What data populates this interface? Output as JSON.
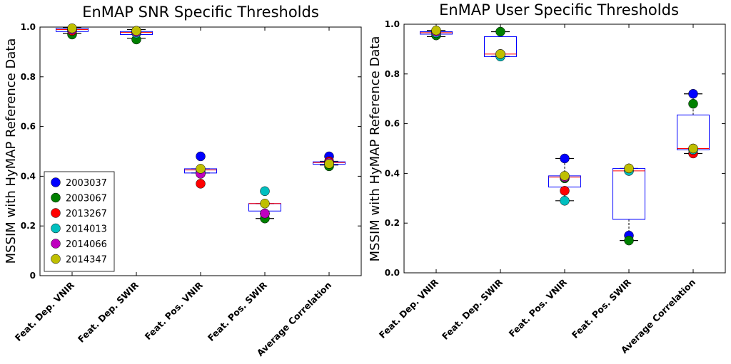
{
  "chart_data": [
    {
      "type": "box",
      "title": "EnMAP SNR Specific Thresholds",
      "ylabel": "MSSIM with HyMAP Reference Data",
      "xlabel": "",
      "ylim": [
        0,
        1
      ],
      "yticks": [
        "0",
        "0.2",
        "0.4",
        "0.6",
        "0.8",
        "1.0"
      ],
      "categories": [
        "Feat. Dep. VNIR",
        "Feat. Dep. SWIR",
        "Feat. Pos. VNIR",
        "Feat. Pos. SWIR",
        "Average Correlation"
      ],
      "boxes": [
        {
          "q1": 0.982,
          "median": 0.99,
          "q3": 0.995,
          "whisker_low": 0.975,
          "whisker_high": 0.998
        },
        {
          "q1": 0.97,
          "median": 0.978,
          "q3": 0.982,
          "whisker_low": 0.955,
          "whisker_high": 0.99
        },
        {
          "q1": 0.413,
          "median": 0.425,
          "q3": 0.43,
          "whisker_low": 0.413,
          "whisker_high": 0.43
        },
        {
          "q1": 0.26,
          "median": 0.29,
          "q3": 0.29,
          "whisker_low": 0.23,
          "whisker_high": 0.29
        },
        {
          "q1": 0.448,
          "median": 0.455,
          "q3": 0.458,
          "whisker_low": 0.445,
          "whisker_high": 0.46
        }
      ],
      "series": [
        {
          "name": "2003037",
          "color": "#0000ff",
          "values": [
            0.99,
            0.98,
            0.48,
            0.25,
            0.48
          ]
        },
        {
          "name": "2003067",
          "color": "#008000",
          "values": [
            0.97,
            0.95,
            0.41,
            0.23,
            0.44
          ]
        },
        {
          "name": "2013267",
          "color": "#ff0000",
          "values": [
            0.985,
            0.985,
            0.37,
            0.25,
            0.46
          ]
        },
        {
          "name": "2014013",
          "color": "#00bfbf",
          "values": [
            0.99,
            0.975,
            0.42,
            0.34,
            0.45
          ]
        },
        {
          "name": "2014066",
          "color": "#bf00bf",
          "values": [
            0.99,
            0.98,
            0.41,
            0.25,
            0.455
          ]
        },
        {
          "name": "2014347",
          "color": "#bfbf00",
          "values": [
            0.995,
            0.985,
            0.43,
            0.29,
            0.45
          ]
        }
      ],
      "legend_position": "lower-left"
    },
    {
      "type": "box",
      "title": "EnMAP User Specific Thresholds",
      "ylabel": "MSSIM with HyMAP Reference Data",
      "xlabel": "",
      "ylim": [
        0,
        1
      ],
      "yticks": [
        "0.0",
        "0.2",
        "0.4",
        "0.6",
        "0.8",
        "1.0"
      ],
      "categories": [
        "Feat. Dep. VNIR",
        "Feat. Dep. SWIR",
        "Feat. Pos. VNIR",
        "Feat. Pos. SWIR",
        "Average Correlation"
      ],
      "boxes": [
        {
          "q1": 0.96,
          "median": 0.966,
          "q3": 0.97,
          "whisker_low": 0.95,
          "whisker_high": 0.975
        },
        {
          "q1": 0.87,
          "median": 0.88,
          "q3": 0.95,
          "whisker_low": 0.87,
          "whisker_high": 0.97
        },
        {
          "q1": 0.345,
          "median": 0.385,
          "q3": 0.39,
          "whisker_low": 0.29,
          "whisker_high": 0.46
        },
        {
          "q1": 0.215,
          "median": 0.41,
          "q3": 0.42,
          "whisker_low": 0.13,
          "whisker_high": 0.42
        },
        {
          "q1": 0.495,
          "median": 0.5,
          "q3": 0.635,
          "whisker_low": 0.48,
          "whisker_high": 0.72
        }
      ],
      "series": [
        {
          "name": "2003037",
          "color": "#0000ff",
          "values": [
            0.97,
            0.88,
            0.46,
            0.15,
            0.72
          ]
        },
        {
          "name": "2003067",
          "color": "#008000",
          "values": [
            0.955,
            0.97,
            0.38,
            0.13,
            0.68
          ]
        },
        {
          "name": "2013267",
          "color": "#ff0000",
          "values": [
            0.965,
            0.875,
            0.33,
            0.41,
            0.48
          ]
        },
        {
          "name": "2014013",
          "color": "#00bfbf",
          "values": [
            0.965,
            0.87,
            0.29,
            0.41,
            0.495
          ]
        },
        {
          "name": "2014066",
          "color": "#bf00bf",
          "values": [
            0.97,
            0.88,
            0.385,
            0.42,
            0.5
          ]
        },
        {
          "name": "2014347",
          "color": "#bfbf00",
          "values": [
            0.975,
            0.88,
            0.39,
            0.42,
            0.5
          ]
        }
      ],
      "legend_position": "none"
    }
  ]
}
